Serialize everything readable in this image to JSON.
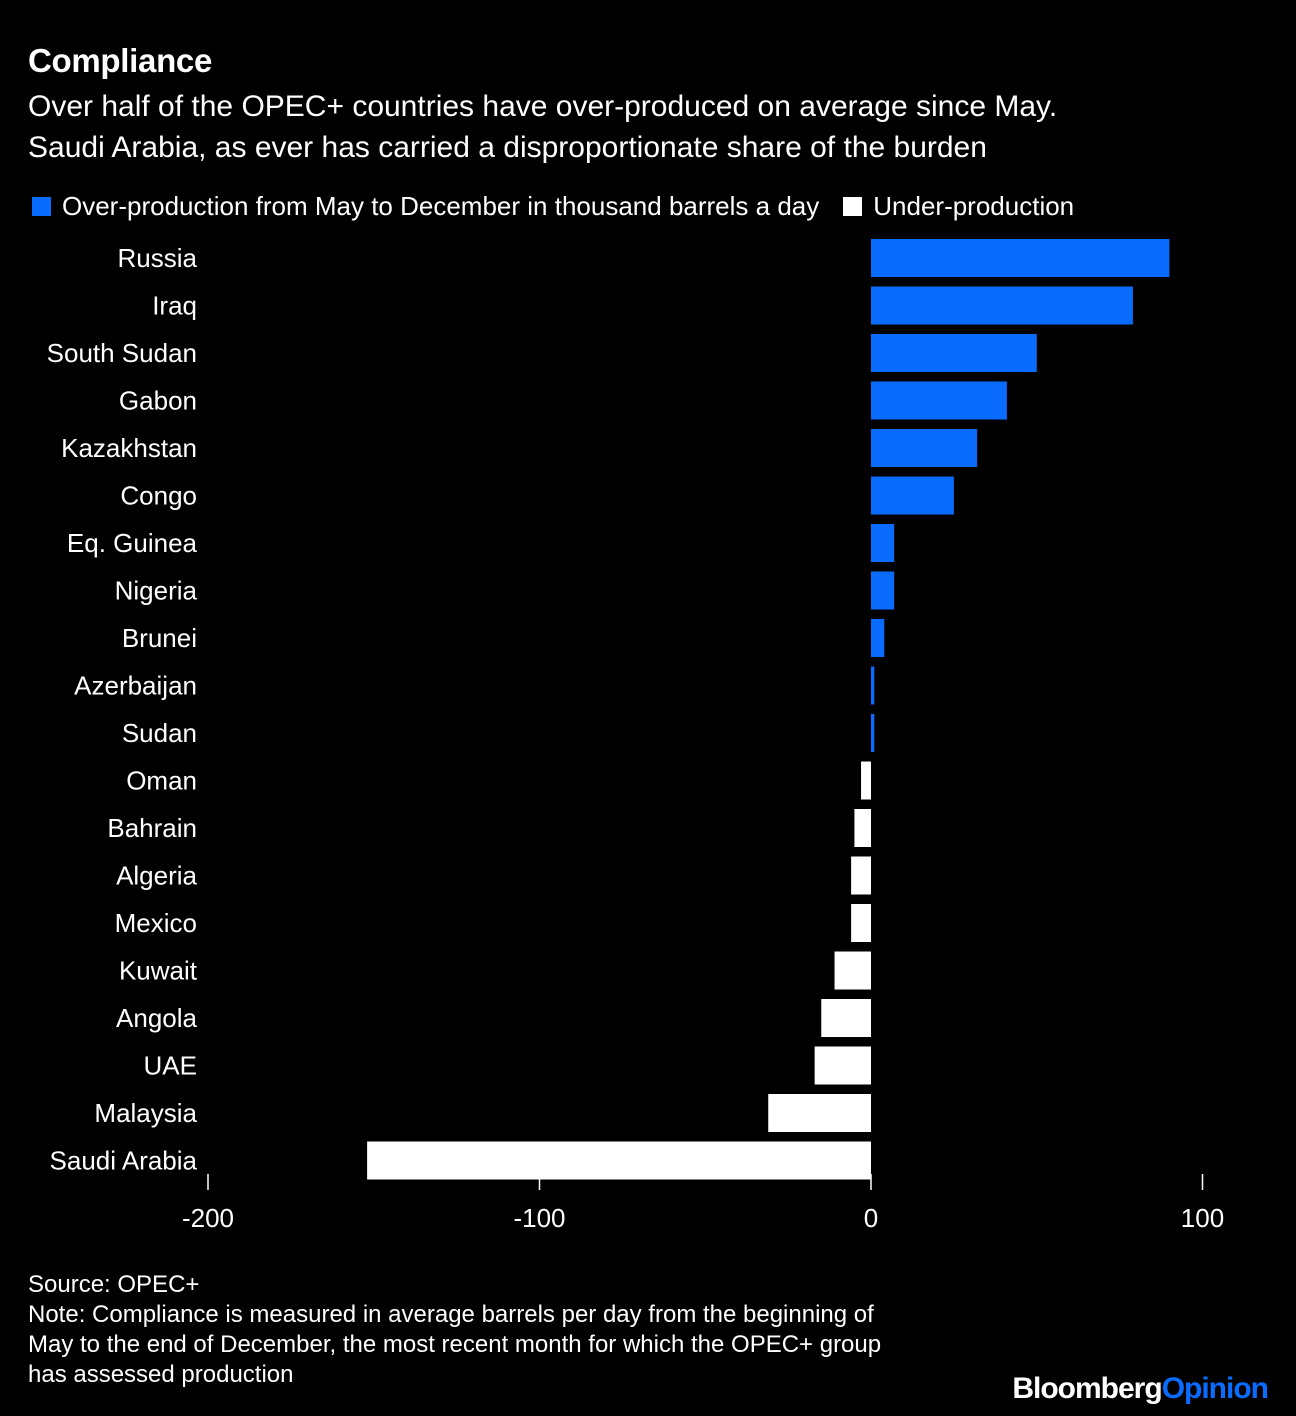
{
  "title": "Compliance",
  "subtitle_line1": "Over half of the OPEC+ countries have over-produced on average since May.",
  "subtitle_line2": "Saudi Arabia, as ever has carried a disproportionate share of the burden",
  "legend": {
    "over": "Over-production from May to December in thousand barrels a day",
    "under": "Under-production"
  },
  "colors": {
    "over": "#0a6cff",
    "under": "#ffffff",
    "background": "#000000"
  },
  "chart_data": {
    "type": "bar",
    "orientation": "horizontal",
    "title": "Compliance",
    "xlabel": "",
    "ylabel": "",
    "xlim": [
      -200,
      100
    ],
    "ticks": [
      -200,
      -100,
      0,
      100
    ],
    "tick_labels": [
      "-200",
      "-100",
      "0",
      "100"
    ],
    "categories": [
      "Russia",
      "Iraq",
      "South Sudan",
      "Gabon",
      "Kazakhstan",
      "Congo",
      "Eq. Guinea",
      "Nigeria",
      "Brunei",
      "Azerbaijan",
      "Sudan",
      "Oman",
      "Bahrain",
      "Algeria",
      "Mexico",
      "Kuwait",
      "Angola",
      "UAE",
      "Malaysia",
      "Saudi Arabia"
    ],
    "values": [
      90,
      79,
      50,
      41,
      32,
      25,
      7,
      7,
      4,
      1,
      1,
      -3,
      -5,
      -6,
      -6,
      -11,
      -15,
      -17,
      -31,
      -152
    ],
    "legend": [
      "Over-production from May to December in thousand barrels a day",
      "Under-production"
    ]
  },
  "footer": {
    "source": "Source: OPEC+",
    "note_line1": "Note: Compliance is measured in average barrels per day from the beginning of",
    "note_line2": "May to the end of December, the most recent month for which the OPEC+ group",
    "note_line3": "has assessed production"
  },
  "brand": {
    "part1": "Bloomberg",
    "part2": "Opinion"
  }
}
